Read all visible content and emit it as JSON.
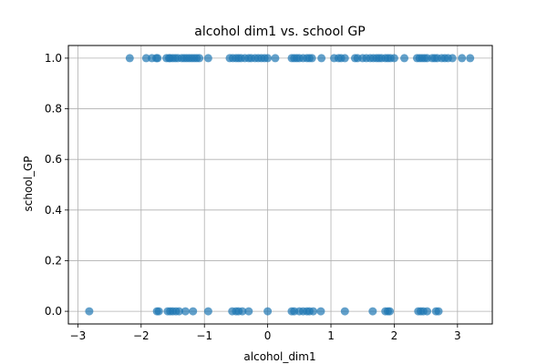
{
  "chart_data": {
    "type": "scatter",
    "title": "alcohol dim1 vs. school GP",
    "xlabel": "alcohol_dim1",
    "ylabel": "school_GP",
    "xlim": [
      -3.15,
      3.55
    ],
    "ylim": [
      -0.05,
      1.05
    ],
    "xticks": [
      -3,
      -2,
      -1,
      0,
      1,
      2,
      3
    ],
    "xtick_labels": [
      "−3",
      "−2",
      "−1",
      "0",
      "1",
      "2",
      "3"
    ],
    "yticks": [
      0.0,
      0.2,
      0.4,
      0.6,
      0.8,
      1.0
    ],
    "ytick_labels": [
      "0.0",
      "0.2",
      "0.4",
      "0.6",
      "0.8",
      "1.0"
    ],
    "grid": true,
    "marker_color": "#1f77b4",
    "marker_opacity": 0.7,
    "points": [
      {
        "x": -2.18,
        "y": 1
      },
      {
        "x": -1.92,
        "y": 1
      },
      {
        "x": -1.83,
        "y": 1
      },
      {
        "x": -1.76,
        "y": 1
      },
      {
        "x": -1.74,
        "y": 1
      },
      {
        "x": -1.6,
        "y": 1
      },
      {
        "x": -1.56,
        "y": 1
      },
      {
        "x": -1.54,
        "y": 1
      },
      {
        "x": -1.5,
        "y": 1
      },
      {
        "x": -1.46,
        "y": 1
      },
      {
        "x": -1.42,
        "y": 1
      },
      {
        "x": -1.36,
        "y": 1
      },
      {
        "x": -1.32,
        "y": 1
      },
      {
        "x": -1.28,
        "y": 1
      },
      {
        "x": -1.24,
        "y": 1
      },
      {
        "x": -1.2,
        "y": 1
      },
      {
        "x": -1.16,
        "y": 1
      },
      {
        "x": -1.12,
        "y": 1
      },
      {
        "x": -1.08,
        "y": 1
      },
      {
        "x": -0.94,
        "y": 1
      },
      {
        "x": -0.6,
        "y": 1
      },
      {
        "x": -0.55,
        "y": 1
      },
      {
        "x": -0.5,
        "y": 1
      },
      {
        "x": -0.46,
        "y": 1
      },
      {
        "x": -0.42,
        "y": 1
      },
      {
        "x": -0.36,
        "y": 1
      },
      {
        "x": -0.3,
        "y": 1
      },
      {
        "x": -0.26,
        "y": 1
      },
      {
        "x": -0.2,
        "y": 1
      },
      {
        "x": -0.15,
        "y": 1
      },
      {
        "x": -0.1,
        "y": 1
      },
      {
        "x": -0.05,
        "y": 1
      },
      {
        "x": 0.0,
        "y": 1
      },
      {
        "x": 0.12,
        "y": 1
      },
      {
        "x": 0.38,
        "y": 1
      },
      {
        "x": 0.42,
        "y": 1
      },
      {
        "x": 0.46,
        "y": 1
      },
      {
        "x": 0.5,
        "y": 1
      },
      {
        "x": 0.56,
        "y": 1
      },
      {
        "x": 0.62,
        "y": 1
      },
      {
        "x": 0.66,
        "y": 1
      },
      {
        "x": 0.7,
        "y": 1
      },
      {
        "x": 0.85,
        "y": 1
      },
      {
        "x": 1.05,
        "y": 1
      },
      {
        "x": 1.12,
        "y": 1
      },
      {
        "x": 1.16,
        "y": 1
      },
      {
        "x": 1.22,
        "y": 1
      },
      {
        "x": 1.38,
        "y": 1
      },
      {
        "x": 1.42,
        "y": 1
      },
      {
        "x": 1.5,
        "y": 1
      },
      {
        "x": 1.56,
        "y": 1
      },
      {
        "x": 1.62,
        "y": 1
      },
      {
        "x": 1.67,
        "y": 1
      },
      {
        "x": 1.72,
        "y": 1
      },
      {
        "x": 1.76,
        "y": 1
      },
      {
        "x": 1.8,
        "y": 1
      },
      {
        "x": 1.86,
        "y": 1
      },
      {
        "x": 1.9,
        "y": 1
      },
      {
        "x": 1.94,
        "y": 1
      },
      {
        "x": 2.0,
        "y": 1
      },
      {
        "x": 2.16,
        "y": 1
      },
      {
        "x": 2.36,
        "y": 1
      },
      {
        "x": 2.4,
        "y": 1
      },
      {
        "x": 2.44,
        "y": 1
      },
      {
        "x": 2.48,
        "y": 1
      },
      {
        "x": 2.52,
        "y": 1
      },
      {
        "x": 2.6,
        "y": 1
      },
      {
        "x": 2.64,
        "y": 1
      },
      {
        "x": 2.68,
        "y": 1
      },
      {
        "x": 2.75,
        "y": 1
      },
      {
        "x": 2.8,
        "y": 1
      },
      {
        "x": 2.85,
        "y": 1
      },
      {
        "x": 2.92,
        "y": 1
      },
      {
        "x": 3.07,
        "y": 1
      },
      {
        "x": 3.2,
        "y": 1
      },
      {
        "x": -2.82,
        "y": 0
      },
      {
        "x": -1.75,
        "y": 0
      },
      {
        "x": -1.72,
        "y": 0
      },
      {
        "x": -1.58,
        "y": 0
      },
      {
        "x": -1.54,
        "y": 0
      },
      {
        "x": -1.5,
        "y": 0
      },
      {
        "x": -1.45,
        "y": 0
      },
      {
        "x": -1.4,
        "y": 0
      },
      {
        "x": -1.3,
        "y": 0
      },
      {
        "x": -1.18,
        "y": 0
      },
      {
        "x": -0.94,
        "y": 0
      },
      {
        "x": -0.56,
        "y": 0
      },
      {
        "x": -0.5,
        "y": 0
      },
      {
        "x": -0.46,
        "y": 0
      },
      {
        "x": -0.4,
        "y": 0
      },
      {
        "x": -0.3,
        "y": 0
      },
      {
        "x": 0.0,
        "y": 0
      },
      {
        "x": 0.38,
        "y": 0
      },
      {
        "x": 0.42,
        "y": 0
      },
      {
        "x": 0.5,
        "y": 0
      },
      {
        "x": 0.56,
        "y": 0
      },
      {
        "x": 0.62,
        "y": 0
      },
      {
        "x": 0.66,
        "y": 0
      },
      {
        "x": 0.72,
        "y": 0
      },
      {
        "x": 0.84,
        "y": 0
      },
      {
        "x": 1.22,
        "y": 0
      },
      {
        "x": 1.66,
        "y": 0
      },
      {
        "x": 1.86,
        "y": 0
      },
      {
        "x": 1.9,
        "y": 0
      },
      {
        "x": 1.93,
        "y": 0
      },
      {
        "x": 2.38,
        "y": 0
      },
      {
        "x": 2.42,
        "y": 0
      },
      {
        "x": 2.46,
        "y": 0
      },
      {
        "x": 2.52,
        "y": 0
      },
      {
        "x": 2.66,
        "y": 0
      },
      {
        "x": 2.7,
        "y": 0
      }
    ]
  }
}
